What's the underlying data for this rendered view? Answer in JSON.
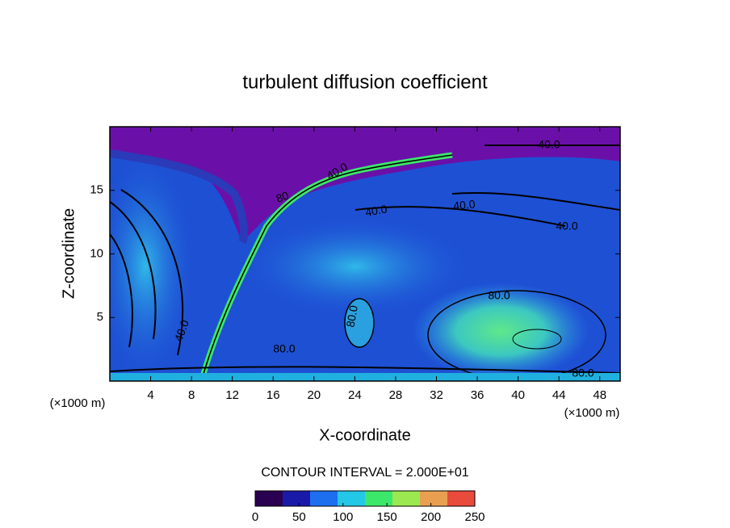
{
  "chart_data": {
    "type": "contour",
    "title": "turbulent diffusion coefficient",
    "x_label": "X-coordinate",
    "y_label": "Z-coordinate",
    "x_unit": "(×1000 m)",
    "y_unit": "(×1000 m)",
    "xlim": [
      0,
      50
    ],
    "ylim": [
      0,
      20
    ],
    "xticks": [
      4,
      8,
      12,
      16,
      20,
      24,
      28,
      32,
      36,
      40,
      44,
      48
    ],
    "yticks": [
      5,
      10,
      15
    ],
    "contour_interval_label": "CONTOUR INTERVAL = 2.000E+01",
    "contour_labels": [
      "40.0",
      "40.0",
      "40.0",
      "40.0",
      "40.0",
      "80.0",
      "80.0",
      "80.0",
      "80.0",
      "80",
      "40.0"
    ],
    "colorbar": {
      "clim": [
        0,
        250
      ],
      "ticks": [
        0,
        50,
        100,
        150,
        200,
        250
      ],
      "colors": [
        "#2a0050",
        "#1a1aa8",
        "#1e6ef0",
        "#22c8e6",
        "#3ce86a",
        "#9ce850",
        "#e8a050",
        "#e84a3c"
      ]
    }
  }
}
